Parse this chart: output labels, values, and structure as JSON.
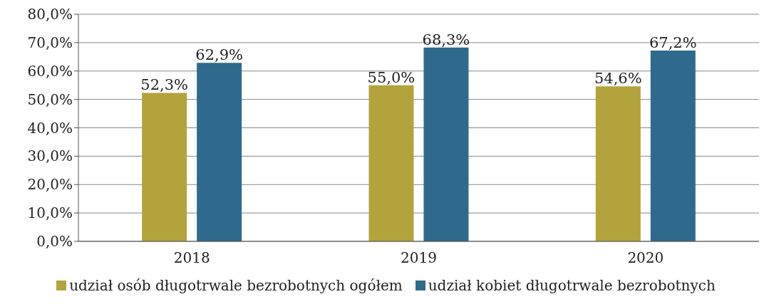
{
  "chart_data": {
    "type": "bar",
    "categories": [
      "2018",
      "2019",
      "2020"
    ],
    "series": [
      {
        "name": "udział osób długotrwale bezrobotnych ogółem",
        "color": "#b3a33c",
        "values": [
          52.3,
          55.0,
          54.6
        ],
        "value_labels": [
          "52,3%",
          "55,0%",
          "54,6%"
        ]
      },
      {
        "name": "udział kobiet długotrwale bezrobotnych",
        "color": "#2f6a8c",
        "values": [
          62.9,
          68.3,
          67.2
        ],
        "value_labels": [
          "62,9%",
          "68,3%",
          "67,2%"
        ]
      }
    ],
    "ylim": [
      0,
      80
    ],
    "yticks": [
      {
        "value": 0,
        "label": "0,0%"
      },
      {
        "value": 10,
        "label": "10,0%"
      },
      {
        "value": 20,
        "label": "20,0%"
      },
      {
        "value": 30,
        "label": "30,0%"
      },
      {
        "value": 40,
        "label": "40,0%"
      },
      {
        "value": 50,
        "label": "50,0%"
      },
      {
        "value": 60,
        "label": "60,0%"
      },
      {
        "value": 70,
        "label": "70,0%"
      },
      {
        "value": 80,
        "label": "80,0%"
      }
    ],
    "grid": "y",
    "legend": "bottom"
  }
}
